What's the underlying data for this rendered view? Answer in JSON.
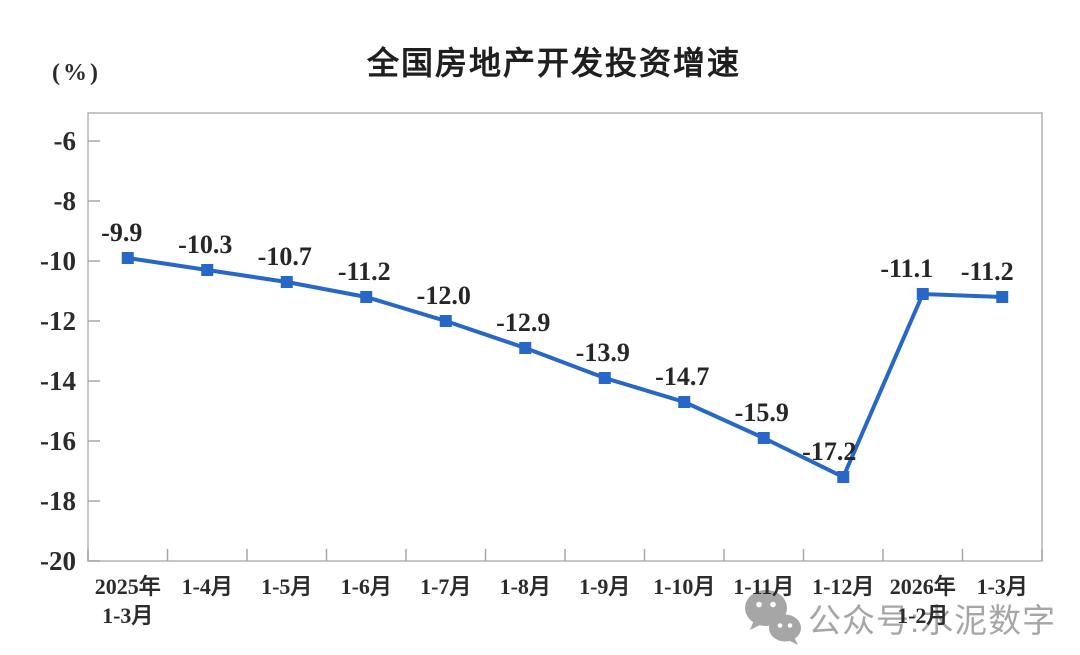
{
  "title": "全国房地产开发投资增速",
  "y_axis_unit": "(%)",
  "watermark": {
    "icon": "wechat-icon",
    "text": "公众号:水泥数字"
  },
  "chart_data": {
    "type": "line",
    "title": "全国房地产开发投资增速",
    "categories": [
      "2025年\n1-3月",
      "1-4月",
      "1-5月",
      "1-6月",
      "1-7月",
      "1-8月",
      "1-9月",
      "1-10月",
      "1-11月",
      "1-12月",
      "2026年\n1-2月",
      "1-3月"
    ],
    "values": [
      -9.9,
      -10.3,
      -10.7,
      -11.2,
      -12.0,
      -12.9,
      -13.9,
      -14.7,
      -15.9,
      -17.2,
      -11.1,
      -11.2
    ],
    "data_labels": [
      "-9.9",
      "-10.3",
      "-10.7",
      "-11.2",
      "-12.0",
      "-12.9",
      "-13.9",
      "-14.7",
      "-15.9",
      "-17.2",
      "-11.1",
      "-11.2"
    ],
    "xlabel": "",
    "ylabel": "(%)",
    "ylim": [
      -20,
      -5
    ],
    "yticks": [
      -6,
      -8,
      -10,
      -12,
      -14,
      -16,
      -18,
      -20
    ],
    "grid": false,
    "legend": null,
    "series_color": "#2767c8",
    "axis_color": "#b3b3b3",
    "tick_color": "#a6a6a6",
    "label_color": "#262626",
    "marker": "square"
  }
}
